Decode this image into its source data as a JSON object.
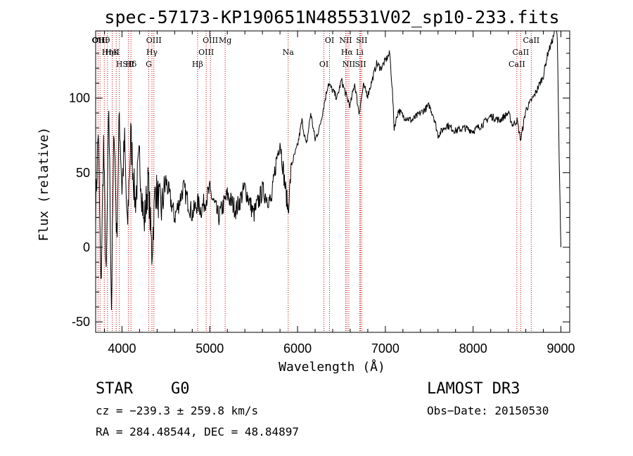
{
  "chart_data": {
    "type": "line",
    "title": "spec-57173-KP190651N485531V02_sp10-233.fits",
    "xlabel": "Wavelength (Å)",
    "ylabel": "Flux (relative)",
    "xlim": [
      3700,
      9100
    ],
    "ylim": [
      -57,
      145
    ],
    "x_ticks": [
      4000,
      5000,
      6000,
      7000,
      8000,
      9000
    ],
    "y_ticks": [
      -50,
      0,
      50,
      100
    ],
    "series": [
      {
        "name": "flux",
        "x": [
          3700,
          3730,
          3760,
          3790,
          3820,
          3850,
          3880,
          3910,
          3940,
          3970,
          4000,
          4030,
          4060,
          4100,
          4150,
          4200,
          4250,
          4300,
          4340,
          4380,
          4450,
          4500,
          4600,
          4700,
          4800,
          4861,
          4900,
          5000,
          5100,
          5200,
          5300,
          5400,
          5500,
          5600,
          5700,
          5750,
          5800,
          5850,
          5893,
          5930,
          6000,
          6050,
          6100,
          6150,
          6200,
          6250,
          6300,
          6350,
          6400,
          6450,
          6500,
          6563,
          6600,
          6650,
          6700,
          6750,
          6800,
          6850,
          6900,
          6950,
          7000,
          7050,
          7080,
          7100,
          7150,
          7200,
          7300,
          7400,
          7500,
          7550,
          7600,
          7700,
          7800,
          7900,
          8000,
          8100,
          8200,
          8300,
          8400,
          8450,
          8500,
          8542,
          8600,
          8700,
          8800,
          8850,
          8900,
          8940,
          8960,
          8980,
          9000
        ],
        "y": [
          25,
          80,
          -30,
          70,
          -25,
          95,
          -40,
          85,
          5,
          90,
          40,
          70,
          10,
          75,
          30,
          60,
          15,
          45,
          -5,
          40,
          25,
          45,
          20,
          40,
          22,
          30,
          25,
          38,
          20,
          35,
          25,
          40,
          22,
          38,
          30,
          55,
          72,
          45,
          25,
          55,
          68,
          85,
          68,
          90,
          72,
          80,
          95,
          110,
          105,
          100,
          112,
          100,
          95,
          110,
          90,
          108,
          102,
          112,
          123,
          120,
          125,
          130,
          105,
          80,
          92,
          88,
          85,
          90,
          95,
          88,
          75,
          82,
          78,
          80,
          78,
          82,
          88,
          85,
          90,
          82,
          85,
          72,
          92,
          102,
          115,
          130,
          138,
          148,
          140,
          60,
          0
        ]
      }
    ],
    "spectral_lines": [
      {
        "label": "Hθ",
        "x": 3798
      },
      {
        "label": "K",
        "x": 3934
      },
      {
        "label": "Hδ",
        "x": 4102
      },
      {
        "label": "OII",
        "x": 3727
      },
      {
        "label": "HeI",
        "x": 3889
      },
      {
        "label": "SII",
        "x": 4072
      },
      {
        "label": "OIII",
        "x": 3750
      },
      {
        "label": "Hη",
        "x": 3835
      },
      {
        "label": "H",
        "x": 3970
      },
      {
        "label": "OIII",
        "x": 4363
      },
      {
        "label": "Hγ",
        "x": 4341
      },
      {
        "label": "G",
        "x": 4305
      },
      {
        "label": "OIII",
        "x": 5007
      },
      {
        "label": "OIII",
        "x": 4959
      },
      {
        "label": "Hβ",
        "x": 4861
      },
      {
        "label": "Mg",
        "x": 5175
      },
      {
        "label": "Na",
        "x": 5893
      },
      {
        "label": "OI",
        "x": 6300
      },
      {
        "label": "OI",
        "x": 6364
      },
      {
        "label": "Hα",
        "x": 6563
      },
      {
        "label": "SII",
        "x": 6717
      },
      {
        "label": "NII",
        "x": 6548
      },
      {
        "label": "Li",
        "x": 6708
      },
      {
        "label": "NII",
        "x": 6584
      },
      {
        "label": "SII",
        "x": 6731
      },
      {
        "label": "CaII",
        "x": 8542
      },
      {
        "label": "CaII",
        "x": 8498
      },
      {
        "label": "CaII",
        "x": 8662
      }
    ]
  },
  "info": {
    "object_class": "STAR",
    "subclass": "G0",
    "survey": "LAMOST DR3",
    "cz": "cz = −239.3 ± 259.8 km/s",
    "obs_date": "Obs−Date: 20150530",
    "coords": "RA = 284.48544, DEC =  48.84897"
  }
}
